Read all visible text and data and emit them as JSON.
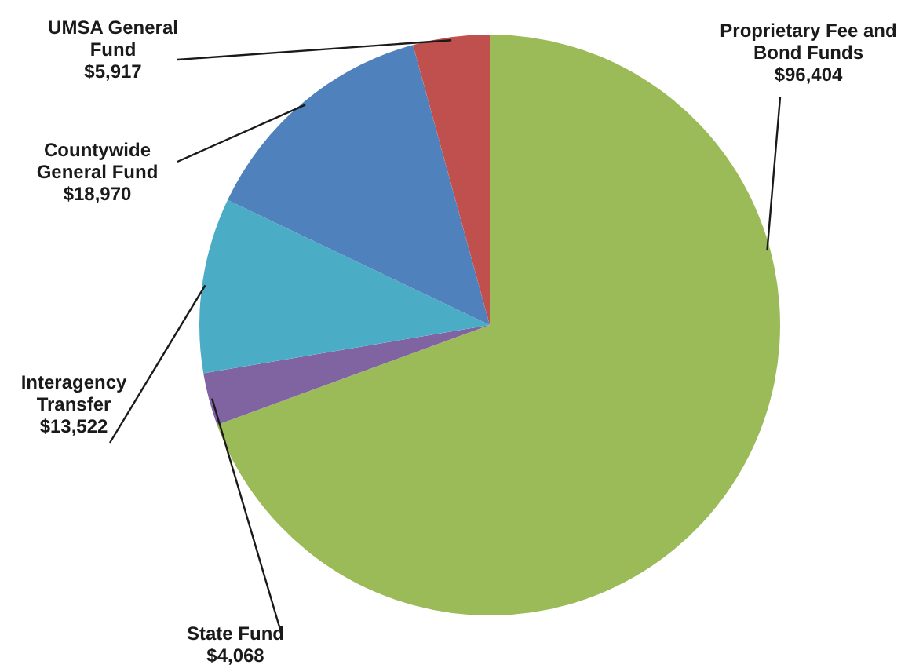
{
  "chart_data": {
    "type": "pie",
    "categories": [
      "Proprietary Fee and Bond Funds",
      "State Fund",
      "Interagency Transfer",
      "Countywide General Fund",
      "UMSA General Fund"
    ],
    "values": [
      96404,
      4068,
      13522,
      18970,
      5917
    ],
    "value_labels": [
      "$96,404",
      "$4,068",
      "$13,522",
      "$18,970",
      "$5,917"
    ],
    "colors": [
      "#9bbb59",
      "#8064a2",
      "#4bacc6",
      "#4f81bd",
      "#c0504d"
    ],
    "legend": false
  }
}
